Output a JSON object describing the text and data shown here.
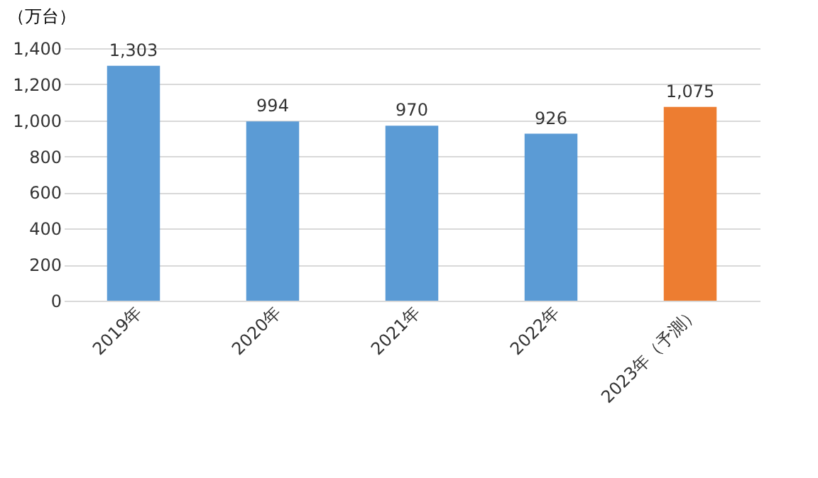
{
  "chart_data": {
    "type": "bar",
    "ylabel": "（万台）",
    "categories": [
      "2019年",
      "2020年",
      "2021年",
      "2022年",
      "2023年（予測）"
    ],
    "values": [
      1303,
      994,
      970,
      926,
      1075
    ],
    "value_labels": [
      "1,303",
      "994",
      "970",
      "926",
      "1,075"
    ],
    "colors": [
      "#5b9bd5",
      "#5b9bd5",
      "#5b9bd5",
      "#5b9bd5",
      "#ed7d31"
    ],
    "ylim": [
      0,
      1400
    ],
    "yticks": [
      0,
      200,
      400,
      600,
      800,
      {
        "value": 1000,
        "label": "1,000"
      },
      {
        "value": 1200,
        "label": "1,200"
      },
      {
        "value": 1400,
        "label": "1,400"
      }
    ],
    "grid": "y"
  }
}
